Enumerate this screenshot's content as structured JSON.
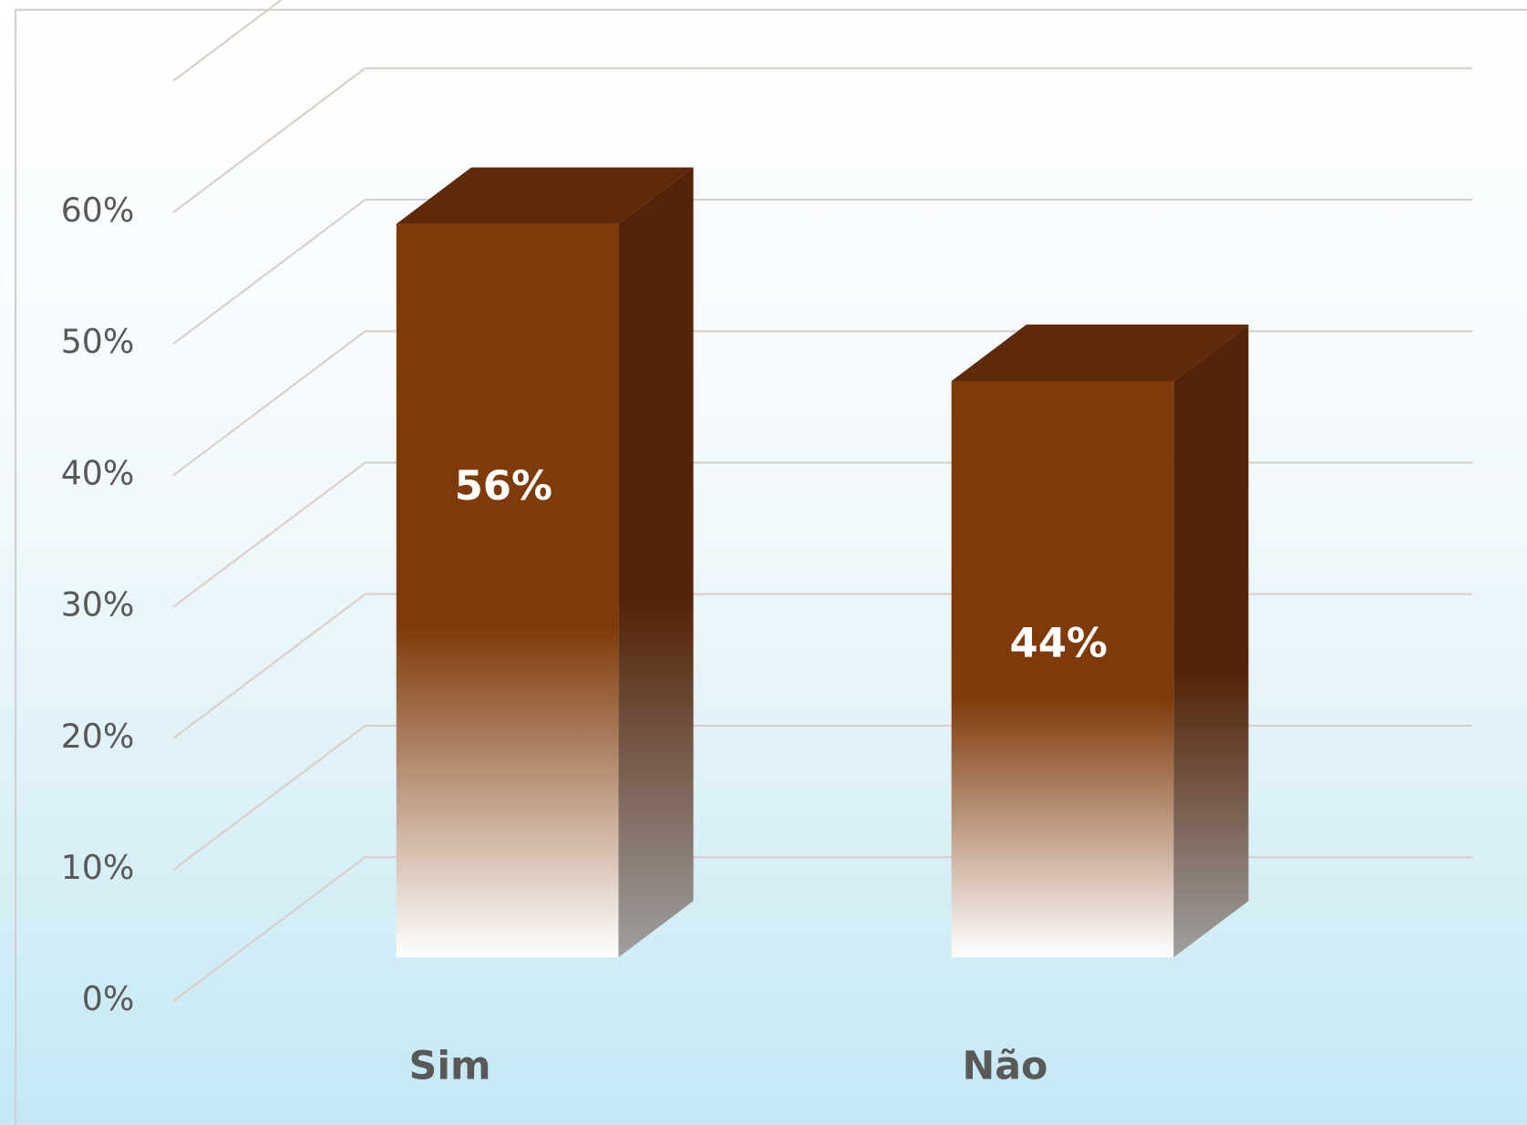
{
  "chart_data": {
    "type": "bar3d",
    "categories": [
      "Sim",
      "Não"
    ],
    "values": [
      56,
      44
    ],
    "value_labels": [
      "56%",
      "44%"
    ],
    "color": "#7f3a0a",
    "ylim": [
      0,
      70
    ],
    "yticks": [
      {
        "value": 0,
        "label": "0%"
      },
      {
        "value": 10,
        "label": "10%"
      },
      {
        "value": 20,
        "label": "20%"
      },
      {
        "value": 30,
        "label": "30%"
      },
      {
        "value": 40,
        "label": "40%"
      },
      {
        "value": 50,
        "label": "50%"
      },
      {
        "value": 60,
        "label": "60%"
      }
    ],
    "grid": true
  }
}
